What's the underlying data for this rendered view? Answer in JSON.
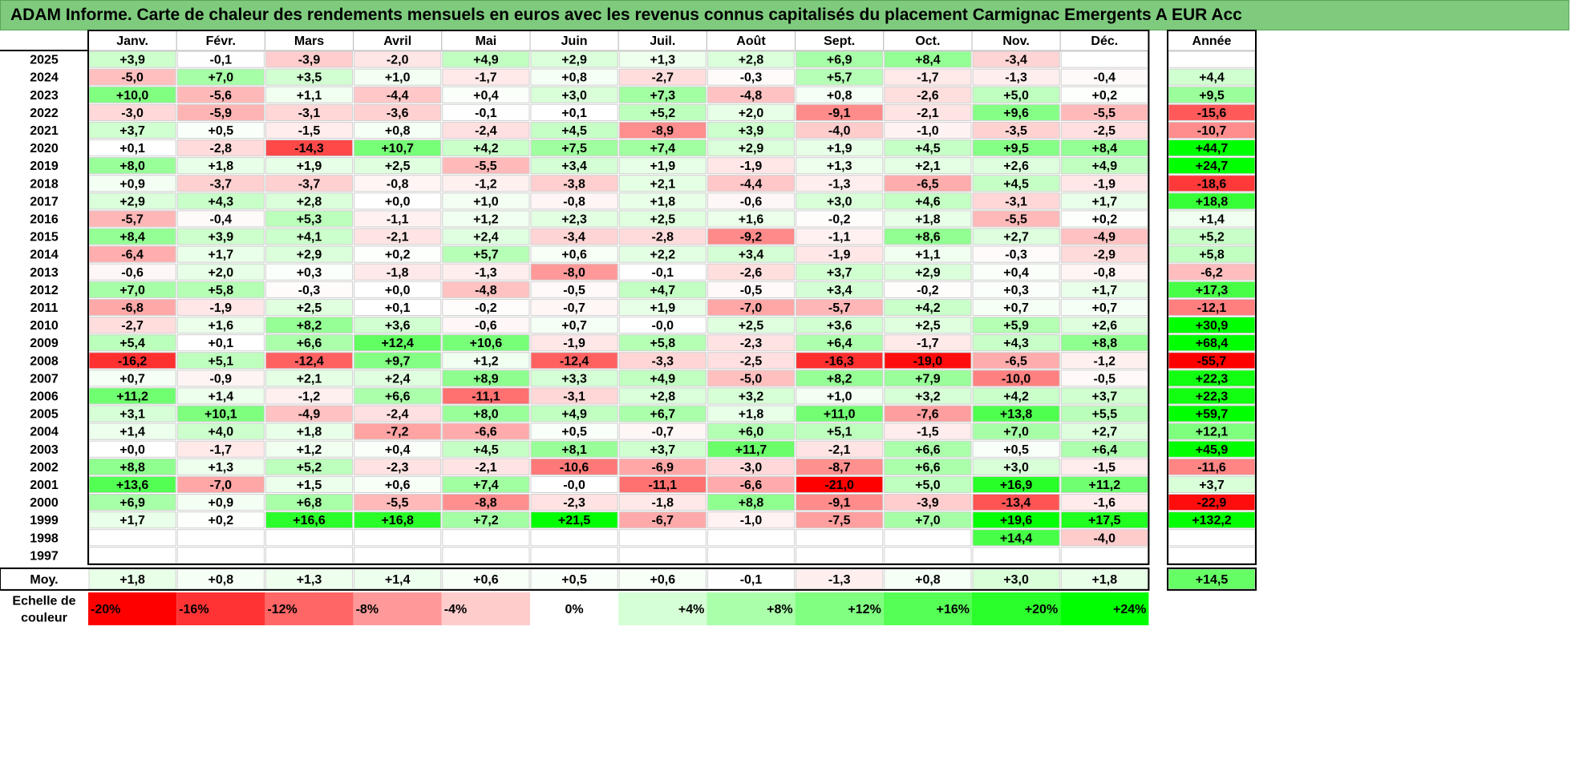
{
  "title": "ADAM Informe. Carte de chaleur des rendements mensuels en euros avec les revenus connus capitalisés du placement Carmignac Emergents A EUR Acc",
  "chart_data": {
    "type": "heatmap",
    "months": [
      "Janv.",
      "Févr.",
      "Mars",
      "Avril",
      "Mai",
      "Juin",
      "Juil.",
      "Août",
      "Sept.",
      "Oct.",
      "Nov.",
      "Déc."
    ],
    "year_header": "Année",
    "years": [
      "2025",
      "2024",
      "2023",
      "2022",
      "2021",
      "2020",
      "2019",
      "2018",
      "2017",
      "2016",
      "2015",
      "2014",
      "2013",
      "2012",
      "2011",
      "2010",
      "2009",
      "2008",
      "2007",
      "2006",
      "2005",
      "2004",
      "2003",
      "2002",
      "2001",
      "2000",
      "1999",
      "1998",
      "1997"
    ],
    "values": [
      [
        "+3,9",
        "-0,1",
        "-3,9",
        "-2,0",
        "+4,9",
        "+2,9",
        "+1,3",
        "+2,8",
        "+6,9",
        "+8,4",
        "-3,4",
        ""
      ],
      [
        "-5,0",
        "+7,0",
        "+3,5",
        "+1,0",
        "-1,7",
        "+0,8",
        "-2,7",
        "-0,3",
        "+5,7",
        "-1,7",
        "-1,3",
        "-0,4"
      ],
      [
        "+10,0",
        "-5,6",
        "+1,1",
        "-4,4",
        "+0,4",
        "+3,0",
        "+7,3",
        "-4,8",
        "+0,8",
        "-2,6",
        "+5,0",
        "+0,2"
      ],
      [
        "-3,0",
        "-5,9",
        "-3,1",
        "-3,6",
        "-0,1",
        "+0,1",
        "+5,2",
        "+2,0",
        "-9,1",
        "-2,1",
        "+9,6",
        "-5,5"
      ],
      [
        "+3,7",
        "+0,5",
        "-1,5",
        "+0,8",
        "-2,4",
        "+4,5",
        "-8,9",
        "+3,9",
        "-4,0",
        "-1,0",
        "-3,5",
        "-2,5"
      ],
      [
        "+0,1",
        "-2,8",
        "-14,3",
        "+10,7",
        "+4,2",
        "+7,5",
        "+7,4",
        "+2,9",
        "+1,9",
        "+4,5",
        "+9,5",
        "+8,4"
      ],
      [
        "+8,0",
        "+1,8",
        "+1,9",
        "+2,5",
        "-5,5",
        "+3,4",
        "+1,9",
        "-1,9",
        "+1,3",
        "+2,1",
        "+2,6",
        "+4,9"
      ],
      [
        "+0,9",
        "-3,7",
        "-3,7",
        "-0,8",
        "-1,2",
        "-3,8",
        "+2,1",
        "-4,4",
        "-1,3",
        "-6,5",
        "+4,5",
        "-1,9"
      ],
      [
        "+2,9",
        "+4,3",
        "+2,8",
        "+0,0",
        "+1,0",
        "-0,8",
        "+1,8",
        "-0,6",
        "+3,0",
        "+4,6",
        "-3,1",
        "+1,7"
      ],
      [
        "-5,7",
        "-0,4",
        "+5,3",
        "-1,1",
        "+1,2",
        "+2,3",
        "+2,5",
        "+1,6",
        "-0,2",
        "+1,8",
        "-5,5",
        "+0,2"
      ],
      [
        "+8,4",
        "+3,9",
        "+4,1",
        "-2,1",
        "+2,4",
        "-3,4",
        "-2,8",
        "-9,2",
        "-1,1",
        "+8,6",
        "+2,7",
        "-4,9"
      ],
      [
        "-6,4",
        "+1,7",
        "+2,9",
        "+0,2",
        "+5,7",
        "+0,6",
        "+2,2",
        "+3,4",
        "-1,9",
        "+1,1",
        "-0,3",
        "-2,9"
      ],
      [
        "-0,6",
        "+2,0",
        "+0,3",
        "-1,8",
        "-1,3",
        "-8,0",
        "-0,1",
        "-2,6",
        "+3,7",
        "+2,9",
        "+0,4",
        "-0,8"
      ],
      [
        "+7,0",
        "+5,8",
        "-0,3",
        "+0,0",
        "-4,8",
        "-0,5",
        "+4,7",
        "-0,5",
        "+3,4",
        "-0,2",
        "+0,3",
        "+1,7"
      ],
      [
        "-6,8",
        "-1,9",
        "+2,5",
        "+0,1",
        "-0,2",
        "-0,7",
        "+1,9",
        "-7,0",
        "-5,7",
        "+4,2",
        "+0,7",
        "+0,7"
      ],
      [
        "-2,7",
        "+1,6",
        "+8,2",
        "+3,6",
        "-0,6",
        "+0,7",
        "-0,0",
        "+2,5",
        "+3,6",
        "+2,5",
        "+5,9",
        "+2,6"
      ],
      [
        "+5,4",
        "+0,1",
        "+6,6",
        "+12,4",
        "+10,6",
        "-1,9",
        "+5,8",
        "-2,3",
        "+6,4",
        "-1,7",
        "+4,3",
        "+8,8"
      ],
      [
        "-16,2",
        "+5,1",
        "-12,4",
        "+9,7",
        "+1,2",
        "-12,4",
        "-3,3",
        "-2,5",
        "-16,3",
        "-19,0",
        "-6,5",
        "-1,2"
      ],
      [
        "+0,7",
        "-0,9",
        "+2,1",
        "+2,4",
        "+8,9",
        "+3,3",
        "+4,9",
        "-5,0",
        "+8,2",
        "+7,9",
        "-10,0",
        "-0,5"
      ],
      [
        "+11,2",
        "+1,4",
        "-1,2",
        "+6,6",
        "-11,1",
        "-3,1",
        "+2,8",
        "+3,2",
        "+1,0",
        "+3,2",
        "+4,2",
        "+3,7"
      ],
      [
        "+3,1",
        "+10,1",
        "-4,9",
        "-2,4",
        "+8,0",
        "+4,9",
        "+6,7",
        "+1,8",
        "+11,0",
        "-7,6",
        "+13,8",
        "+5,5"
      ],
      [
        "+1,4",
        "+4,0",
        "+1,8",
        "-7,2",
        "-6,6",
        "+0,5",
        "-0,7",
        "+6,0",
        "+5,1",
        "-1,5",
        "+7,0",
        "+2,7"
      ],
      [
        "+0,0",
        "-1,7",
        "+1,2",
        "+0,4",
        "+4,5",
        "+8,1",
        "+3,7",
        "+11,7",
        "-2,1",
        "+6,6",
        "+0,5",
        "+6,4"
      ],
      [
        "+8,8",
        "+1,3",
        "+5,2",
        "-2,3",
        "-2,1",
        "-10,6",
        "-6,9",
        "-3,0",
        "-8,7",
        "+6,6",
        "+3,0",
        "-1,5"
      ],
      [
        "+13,6",
        "-7,0",
        "+1,5",
        "+0,6",
        "+7,4",
        "-0,0",
        "-11,1",
        "-6,6",
        "-21,0",
        "+5,0",
        "+16,9",
        "+11,2"
      ],
      [
        "+6,9",
        "+0,9",
        "+6,8",
        "-5,5",
        "-8,8",
        "-2,3",
        "-1,8",
        "+8,8",
        "-9,1",
        "-3,9",
        "-13,4",
        "-1,6"
      ],
      [
        "+1,7",
        "+0,2",
        "+16,6",
        "+16,8",
        "+7,2",
        "+21,5",
        "-6,7",
        "-1,0",
        "-7,5",
        "+7,0",
        "+19,6",
        "+17,5"
      ],
      [
        "",
        "",
        "",
        "",
        "",
        "",
        "",
        "",
        "",
        "",
        "+14,4",
        "-4,0"
      ],
      [
        "",
        "",
        "",
        "",
        "",
        "",
        "",
        "",
        "",
        "",
        "",
        ""
      ]
    ],
    "annual": [
      "",
      "+4,4",
      "+9,5",
      "-15,6",
      "-10,7",
      "+44,7",
      "+24,7",
      "-18,6",
      "+18,8",
      "+1,4",
      "+5,2",
      "+5,8",
      "-6,2",
      "+17,3",
      "-12,1",
      "+30,9",
      "+68,4",
      "-55,7",
      "+22,3",
      "+22,3",
      "+59,7",
      "+12,1",
      "+45,9",
      "-11,6",
      "+3,7",
      "-22,9",
      "+132,2",
      "",
      ""
    ],
    "average_label": "Moy.",
    "averages": [
      "+1,8",
      "+0,8",
      "+1,3",
      "+1,4",
      "+0,6",
      "+0,5",
      "+0,6",
      "-0,1",
      "-1,3",
      "+0,8",
      "+3,0",
      "+1,8"
    ],
    "average_annual": "+14,5",
    "scale_label": [
      "Echelle de",
      "couleur"
    ],
    "scale": [
      {
        "label": "-20%",
        "value": -20
      },
      {
        "label": "-16%",
        "value": -16
      },
      {
        "label": "-12%",
        "value": -12
      },
      {
        "label": "-8%",
        "value": -8
      },
      {
        "label": "-4%",
        "value": -4
      },
      {
        "label": "0%",
        "value": 0
      },
      {
        "label": "+4%",
        "value": 4
      },
      {
        "label": "+8%",
        "value": 8
      },
      {
        "label": "+12%",
        "value": 12
      },
      {
        "label": "+16%",
        "value": 16
      },
      {
        "label": "+20%",
        "value": 20
      },
      {
        "label": "+24%",
        "value": 24
      }
    ],
    "colors": {
      "negative": "#ff0000",
      "positive": "#00ff00",
      "neutral": "#ffffff",
      "header": "#7ecb7e"
    }
  }
}
